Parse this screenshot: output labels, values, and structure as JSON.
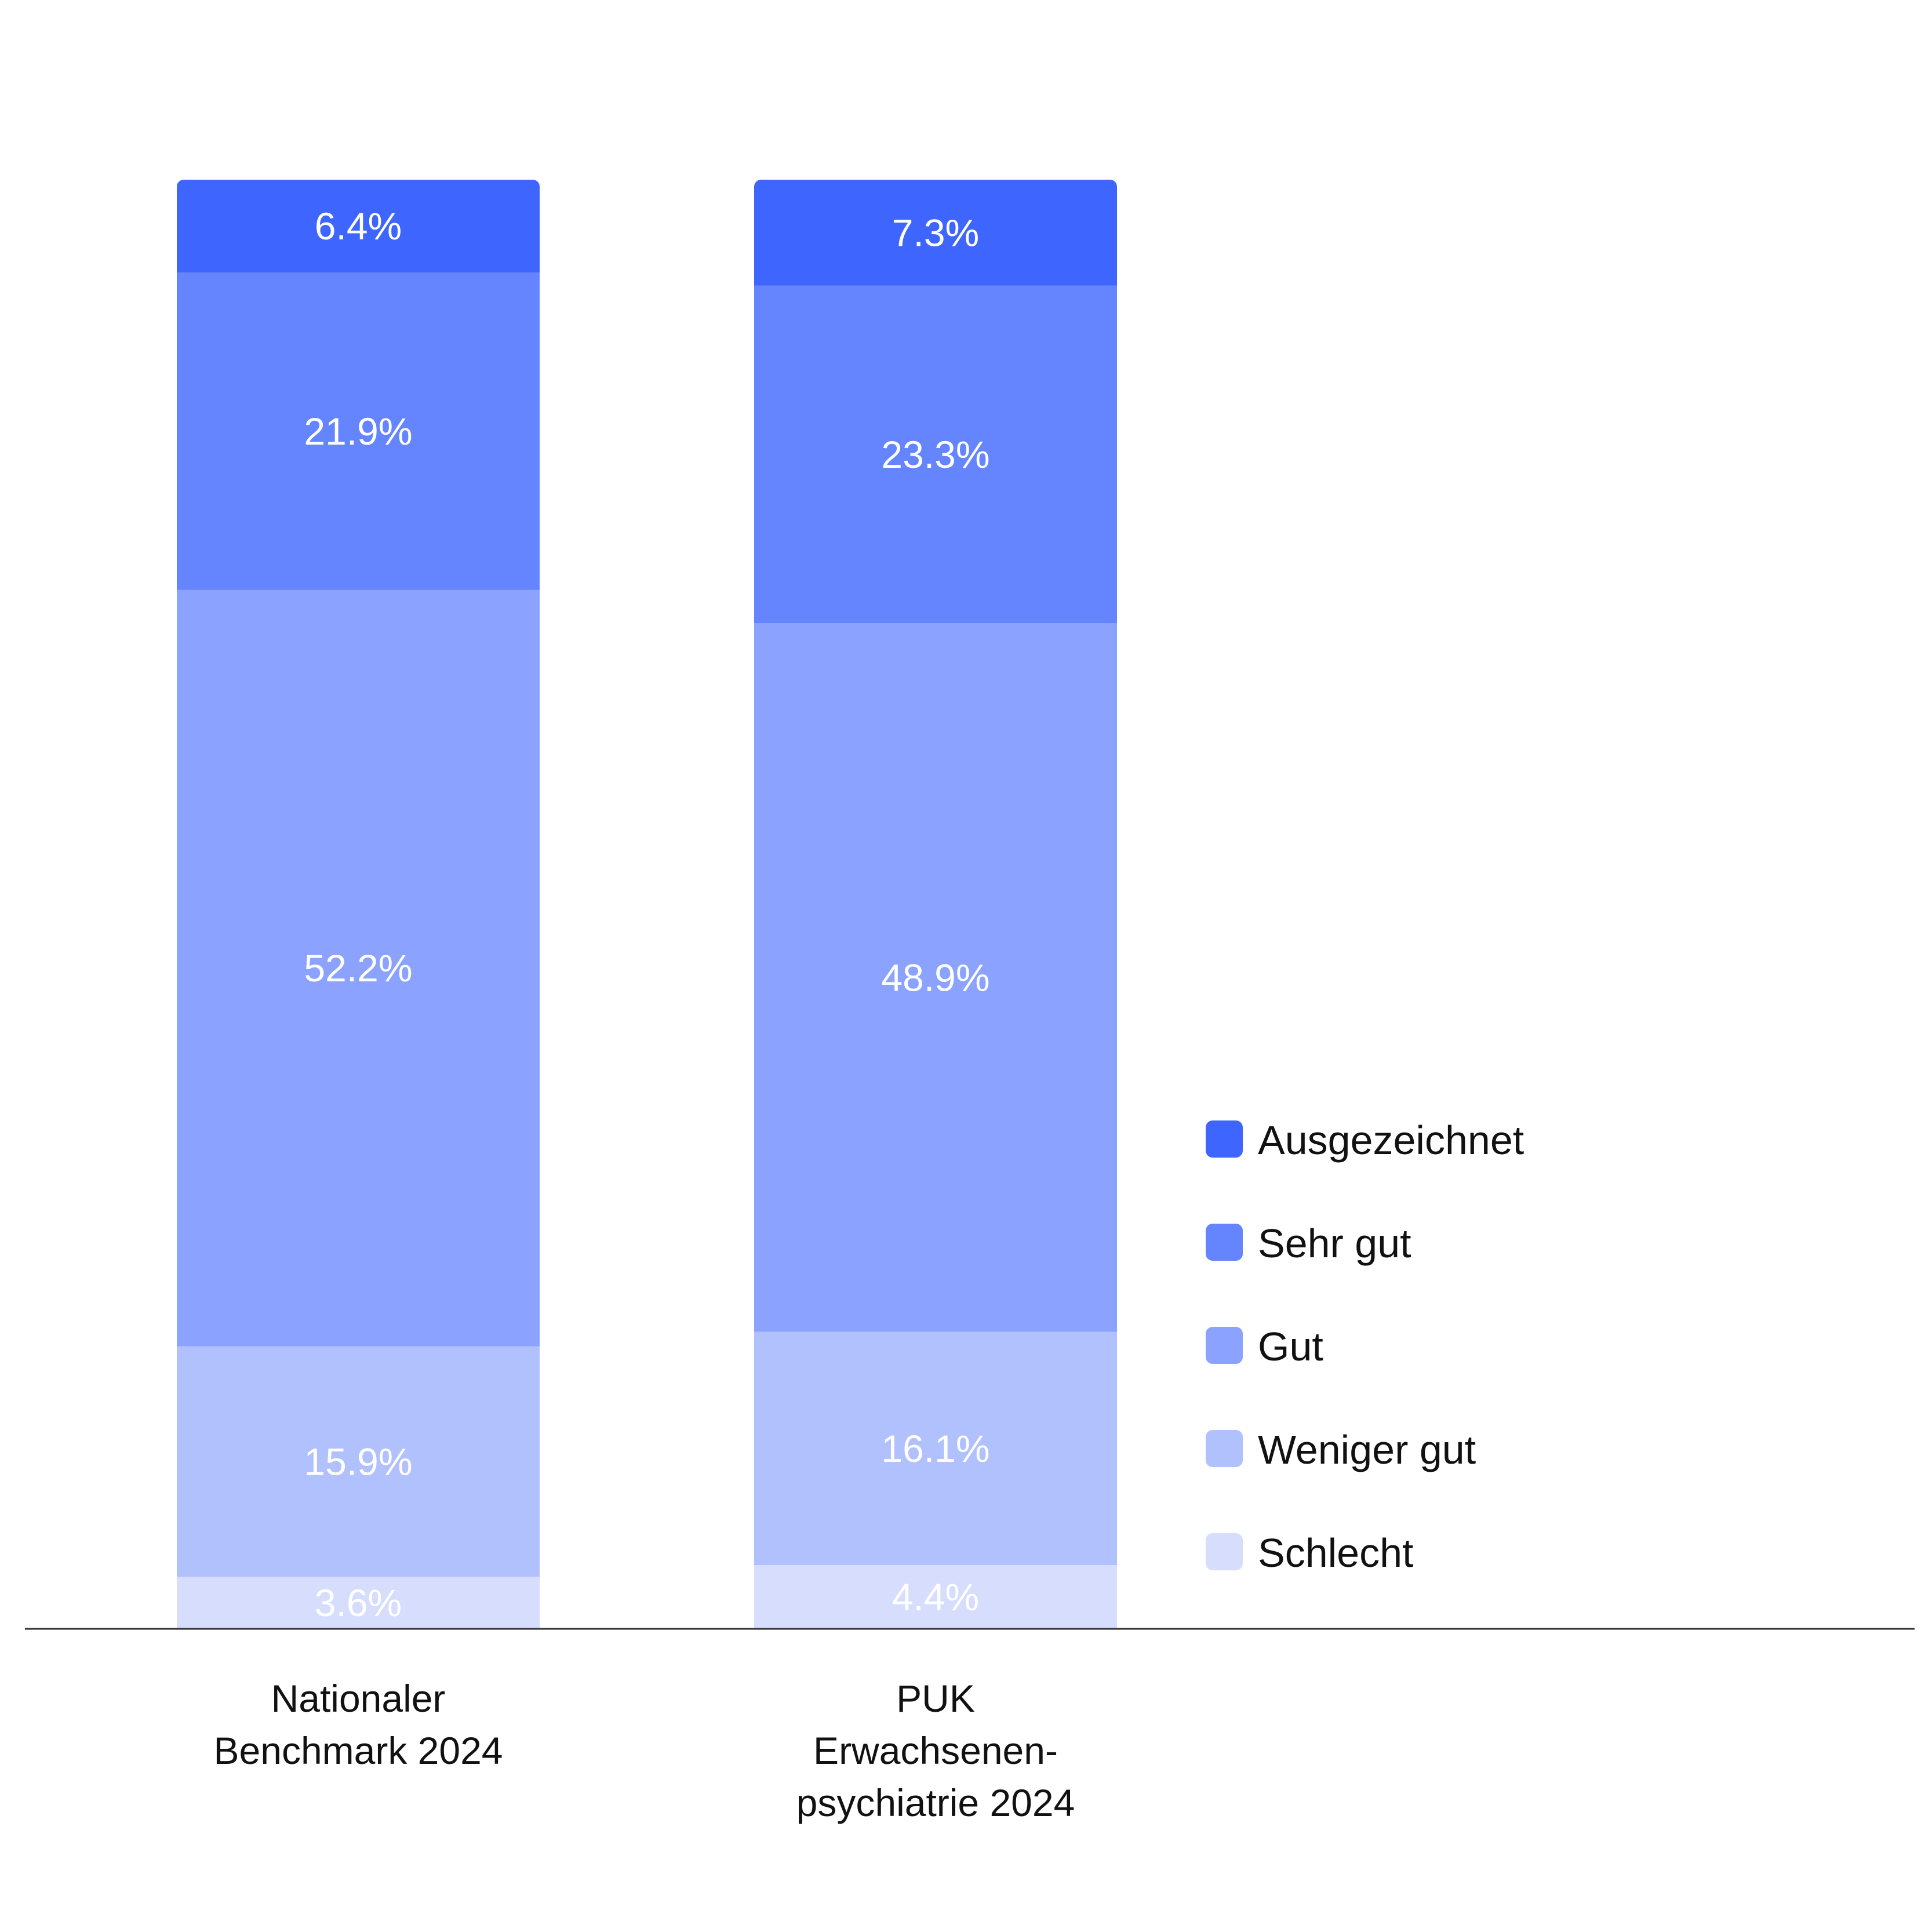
{
  "chart_data": {
    "type": "bar",
    "stacked": true,
    "categories": [
      [
        "Nationaler",
        "Benchmark 2024"
      ],
      [
        "PUK",
        "Erwachsenen-",
        "psychiatrie 2024"
      ]
    ],
    "series": [
      {
        "name": "Schlecht",
        "values": [
          3.6,
          4.4
        ],
        "labels": [
          "3.6%",
          "4.4%"
        ],
        "color": "#d7defd"
      },
      {
        "name": "Weniger gut",
        "values": [
          15.9,
          16.1
        ],
        "labels": [
          "15.9%",
          "16.1%"
        ],
        "color": "#b1c1fd"
      },
      {
        "name": "Gut",
        "values": [
          52.2,
          48.9
        ],
        "labels": [
          "52.2%",
          "48.9%"
        ],
        "color": "#8ba3fe"
      },
      {
        "name": "Sehr gut",
        "values": [
          21.9,
          23.3
        ],
        "labels": [
          "21.9%",
          "23.3%"
        ],
        "color": "#6585fe"
      },
      {
        "name": "Ausgezeichnet",
        "values": [
          6.4,
          7.3
        ],
        "labels": [
          "6.4%",
          "7.3%"
        ],
        "color": "#3e66fe"
      }
    ],
    "legend_order": [
      "Ausgezeichnet",
      "Sehr gut",
      "Gut",
      "Weniger gut",
      "Schlecht"
    ],
    "legend_position": "right",
    "title": "",
    "xlabel": "",
    "ylabel": "",
    "ylim": [
      0,
      100
    ],
    "grid": false,
    "baseline_color": "#333333",
    "label_color": "#ffffff",
    "text_color": "#111111"
  }
}
